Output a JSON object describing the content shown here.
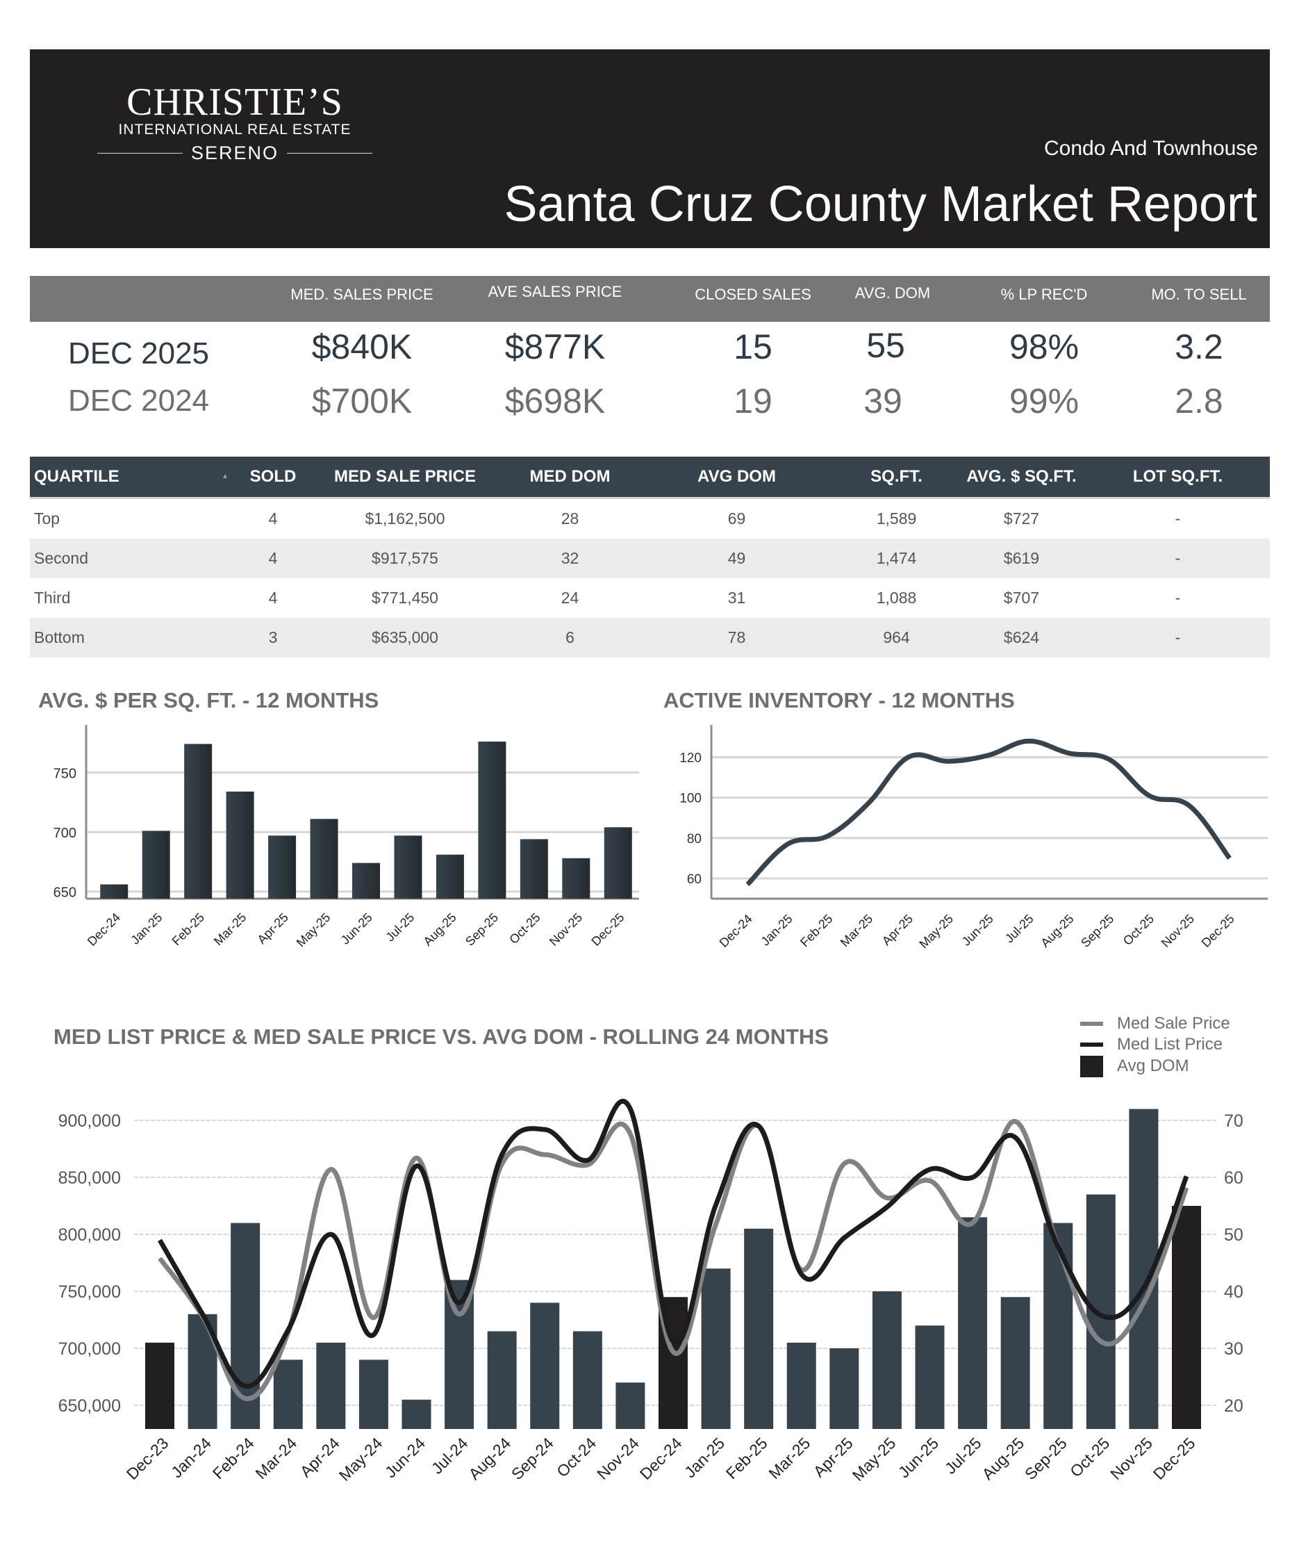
{
  "header": {
    "brand": "CHRISTIE’S",
    "brand_sub": "INTERNATIONAL REAL ESTATE",
    "office": "SERENO",
    "subtitle": "Condo And Townhouse",
    "title": "Santa Cruz County Market Report"
  },
  "colors": {
    "header_bg": "#231f20",
    "stats_header_bg": "#75777a",
    "table_header_bg": "#36434c",
    "bar": "#36434c",
    "bar_highlight": "#231f20",
    "med_sale_line": "#808285",
    "med_list_line": "#1c1c1c"
  },
  "stats": {
    "columns": [
      "MED. SALES PRICE",
      "AVE SALES PRICE",
      "CLOSED SALES",
      "AVG. DOM",
      "% LP REC'D",
      "MO. TO SELL"
    ],
    "rows": [
      {
        "label": "DEC 2025",
        "values": [
          "$840K",
          "$877K",
          "15",
          "55",
          "98%",
          "3.2"
        ]
      },
      {
        "label": "DEC 2024",
        "values": [
          "$700K",
          "$698K",
          "19",
          "39",
          "99%",
          "2.8"
        ]
      }
    ]
  },
  "quartiles": {
    "columns": [
      "QUARTILE",
      "SOLD",
      "MED SALE PRICE",
      "MED DOM",
      "AVG DOM",
      "SQ.FT.",
      "AVG. $ SQ.FT.",
      "LOT SQ.FT."
    ],
    "sort_icon": "▲",
    "rows": [
      [
        "Top",
        "4",
        "$1,162,500",
        "28",
        "69",
        "1,589",
        "$727",
        "-"
      ],
      [
        "Second",
        "4",
        "$917,575",
        "32",
        "49",
        "1,474",
        "$619",
        "-"
      ],
      [
        "Third",
        "4",
        "$771,450",
        "24",
        "31",
        "1,088",
        "$707",
        "-"
      ],
      [
        "Bottom",
        "3",
        "$635,000",
        "6",
        "78",
        "964",
        "$624",
        "-"
      ]
    ]
  },
  "chart_data": [
    {
      "type": "bar",
      "title": "AVG. $ PER SQ. FT. - 12 MONTHS",
      "categories": [
        "Dec-24",
        "Jan-25",
        "Feb-25",
        "Mar-25",
        "Apr-25",
        "May-25",
        "Jun-25",
        "Jul-25",
        "Aug-25",
        "Sep-25",
        "Oct-25",
        "Nov-25",
        "Dec-25"
      ],
      "values": [
        656,
        701,
        774,
        734,
        697,
        711,
        674,
        697,
        681,
        776,
        694,
        678,
        704
      ],
      "yticks": [
        650,
        700,
        750
      ],
      "ylim": [
        644,
        790
      ],
      "xlabel": "",
      "ylabel": "",
      "grid": true
    },
    {
      "type": "line",
      "title": "ACTIVE INVENTORY - 12 MONTHS",
      "categories": [
        "Dec-24",
        "Jan-25",
        "Feb-25",
        "Mar-25",
        "Apr-25",
        "May-25",
        "Jun-25",
        "Jul-25",
        "Aug-25",
        "Sep-25",
        "Oct-25",
        "Nov-25",
        "Dec-25"
      ],
      "values": [
        57,
        77,
        81,
        97,
        120,
        118,
        121,
        128,
        122,
        119,
        101,
        96,
        70
      ],
      "yticks": [
        60,
        80,
        100,
        120
      ],
      "ylim": [
        50,
        136
      ],
      "xlabel": "",
      "ylabel": "",
      "grid": true
    },
    {
      "type": "bar",
      "title": "MED LIST PRICE & MED SALE PRICE VS. AVG DOM  - ROLLING 24 MONTHS",
      "categories": [
        "Dec-23",
        "Jan-24",
        "Feb-24",
        "Mar-24",
        "Apr-24",
        "May-24",
        "Jun-24",
        "Jul-24",
        "Aug-24",
        "Sep-24",
        "Oct-24",
        "Nov-24",
        "Dec-24",
        "Jan-25",
        "Feb-25",
        "Mar-25",
        "Apr-25",
        "May-25",
        "Jun-25",
        "Jul-25",
        "Aug-25",
        "Sep-25",
        "Oct-25",
        "Nov-25",
        "Dec-25"
      ],
      "series": [
        {
          "name": "Avg DOM",
          "kind": "bar",
          "axis": "right",
          "values": [
            31,
            36,
            52,
            28,
            31,
            28,
            21,
            42,
            33,
            38,
            33,
            24,
            39,
            44,
            51,
            31,
            30,
            40,
            34,
            53,
            39,
            52,
            57,
            72,
            55
          ],
          "highlight": [
            "Dec-23",
            "Dec-24",
            "Dec-25"
          ]
        },
        {
          "name": "Med Sale Price",
          "kind": "line",
          "axis": "left",
          "values": [
            779000,
            728000,
            656000,
            714000,
            857000,
            727000,
            867000,
            730000,
            862000,
            870000,
            861000,
            888000,
            697000,
            809000,
            895000,
            769000,
            862000,
            832000,
            847000,
            810000,
            899000,
            789000,
            706000,
            740000,
            841000
          ]
        },
        {
          "name": "Med List Price",
          "kind": "line",
          "axis": "left",
          "values": [
            795000,
            730000,
            667000,
            716000,
            800000,
            712000,
            860000,
            740000,
            870000,
            892000,
            865000,
            910000,
            706000,
            826000,
            895000,
            765000,
            797000,
            824000,
            857000,
            850000,
            885000,
            789000,
            729000,
            753000,
            851000
          ]
        }
      ],
      "legend": [
        "Med Sale Price",
        "Med List Price",
        "Avg DOM"
      ],
      "legend_position": "top-right",
      "yticks_left": [
        "650,000",
        "700,000",
        "750,000",
        "800,000",
        "850,000",
        "900,000"
      ],
      "yticks_left_values": [
        650000,
        700000,
        750000,
        800000,
        850000,
        900000
      ],
      "yticks_right": [
        20,
        30,
        40,
        50,
        60,
        70
      ],
      "ylim_left": [
        630000,
        910000
      ],
      "ylim_right": [
        16,
        72
      ],
      "grid": true
    }
  ]
}
